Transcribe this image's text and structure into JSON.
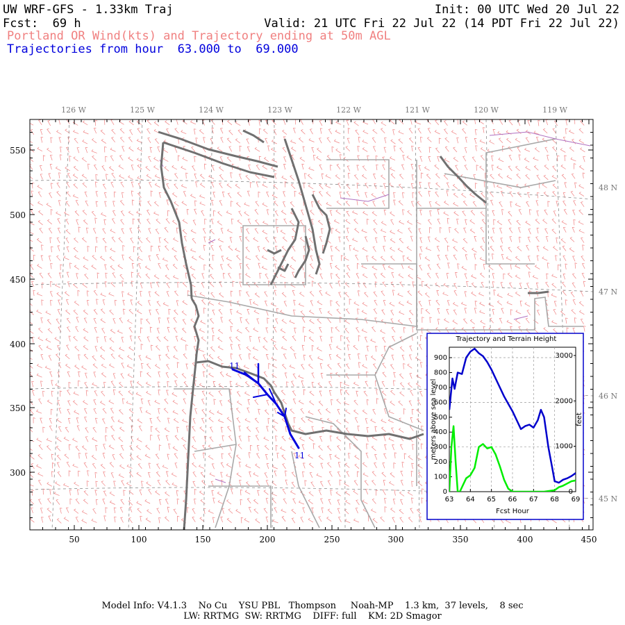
{
  "header": {
    "title": "UW WRF-GFS - 1.33km Traj",
    "init": "Init: 00 UTC Wed 20 Jul 22",
    "fcst": "Fcst:  69 h",
    "valid": "Valid: 21 UTC Fri 22 Jul 22 (14 PDT Fri 22 Jul 22)",
    "subtitle": "Portland OR Wind(kts) and Trajectory ending at 50m AGL",
    "traj_range": "Trajectories from hour  63.000 to  69.000"
  },
  "map": {
    "x_ticks": [
      "50",
      "100",
      "150",
      "200",
      "250",
      "300",
      "350",
      "400",
      "450"
    ],
    "y_ticks": [
      "550",
      "500",
      "450",
      "400",
      "350",
      "300"
    ],
    "lon_labels": [
      "126 W",
      "125 W",
      "124 W",
      "123 W",
      "122 W",
      "121 W",
      "120 W",
      "119 W"
    ],
    "lat_labels": [
      "48 N",
      "47 N",
      "46 N",
      "45 N"
    ],
    "trajectory_start_label": "11",
    "trajectory_end_label": "11",
    "colors": {
      "wind_barbs": "#f08080",
      "coast": "#707070",
      "borders": "#a8a8a8",
      "trajectory": "#0000dd",
      "water": "#b070c0"
    }
  },
  "inset": {
    "title": "Trajectory and Terrain Height",
    "xlabel": "Fcst Hour",
    "ylabel_left": "meters above sea level",
    "ylabel_right": "feet"
  },
  "chart_data": {
    "type": "line",
    "title": "Trajectory and Terrain Height",
    "xlabel": "Fcst Hour",
    "ylabel": "meters above sea level",
    "y2label": "feet",
    "xlim": [
      63,
      69
    ],
    "ylim": [
      0,
      970
    ],
    "x_ticks": [
      "63",
      "64",
      "65",
      "66",
      "67",
      "68",
      "69"
    ],
    "y_ticks": [
      "0",
      "100",
      "200",
      "300",
      "400",
      "500",
      "600",
      "700",
      "800",
      "900"
    ],
    "y2_ticks": [
      "0",
      "1000",
      "2000",
      "3000"
    ],
    "grid": true,
    "series": [
      {
        "color": "#0000cc",
        "x": [
          63.0,
          63.15,
          63.25,
          63.4,
          63.6,
          63.8,
          64.0,
          64.2,
          64.4,
          64.6,
          64.8,
          65.0,
          65.2,
          65.4,
          65.6,
          65.8,
          66.0,
          66.2,
          66.4,
          66.6,
          66.8,
          67.0,
          67.2,
          67.35,
          67.5,
          67.7,
          67.9,
          68.0,
          68.2,
          68.4,
          68.6,
          68.8,
          69.0
        ],
        "values": [
          550,
          760,
          690,
          800,
          790,
          900,
          940,
          960,
          930,
          910,
          870,
          820,
          760,
          700,
          640,
          590,
          540,
          480,
          420,
          440,
          450,
          430,
          480,
          550,
          500,
          300,
          150,
          70,
          60,
          80,
          90,
          105,
          125
        ]
      },
      {
        "color": "#00ee00",
        "x": [
          63.0,
          63.1,
          63.2,
          63.3,
          63.4,
          63.5,
          63.6,
          63.8,
          64.0,
          64.2,
          64.4,
          64.6,
          64.8,
          65.0,
          65.2,
          65.4,
          65.6,
          65.8,
          66.0,
          66.5,
          67.0,
          67.5,
          68.0,
          68.2,
          68.4,
          68.6,
          68.8,
          69.0
        ],
        "values": [
          0,
          300,
          440,
          200,
          0,
          0,
          30,
          90,
          110,
          160,
          300,
          320,
          290,
          300,
          250,
          170,
          80,
          20,
          0,
          0,
          0,
          0,
          10,
          30,
          40,
          55,
          70,
          75
        ]
      }
    ]
  },
  "footer": {
    "line1": "Model Info: V4.1.3    No Cu    YSU PBL   Thompson     Noah-MP    1.3 km,  37 levels,    8 sec",
    "line2": "LW: RRTMG  SW: RRTMG    DIFF: full    KM: 2D Smagor"
  }
}
